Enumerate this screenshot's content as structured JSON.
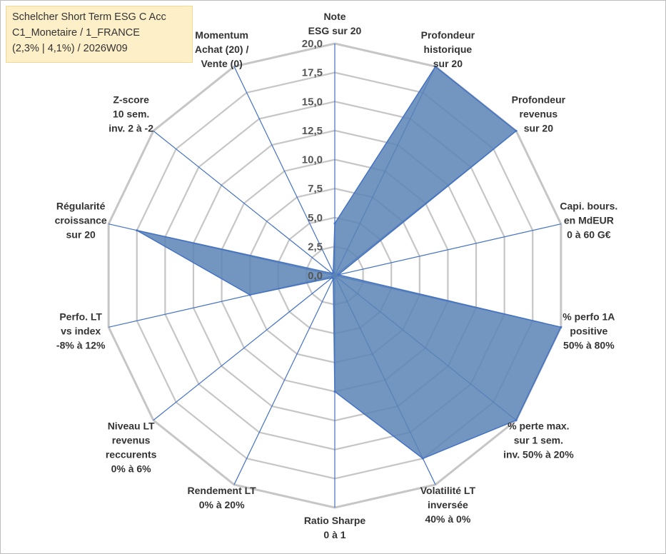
{
  "info_box": {
    "line1": "Schelcher Short Term ESG C Acc",
    "line2": "C1_Monetaire / 1_FRANCE",
    "line3": "(2,3% | 4,1%) / 2026W09"
  },
  "chart_data": {
    "type": "radar",
    "title": "",
    "rmin": 0,
    "rmax": 20,
    "tick_step": 2.5,
    "tick_labels": [
      "0,0",
      "2,5",
      "5,0",
      "7,5",
      "10,0",
      "12,5",
      "15,0",
      "17,5",
      "20,0"
    ],
    "axes": [
      {
        "label": [
          "Note",
          "ESG sur 20"
        ],
        "value": 4.5
      },
      {
        "label": [
          "Profondeur",
          "historique",
          "sur 20"
        ],
        "value": 20
      },
      {
        "label": [
          "Profondeur",
          "revenus",
          "sur 20"
        ],
        "value": 20
      },
      {
        "label": [
          "Capi. bours.",
          "en MdEUR",
          "0 à 60 G€"
        ],
        "value": 0.3
      },
      {
        "label": [
          "% perfo 1A",
          "positive",
          "50% à 80%"
        ],
        "value": 20
      },
      {
        "label": [
          "% perte max.",
          "sur 1 sem.",
          "inv. 50% à 20%"
        ],
        "value": 20
      },
      {
        "label": [
          "Volatilité LT",
          "inversée",
          "40% à 0%"
        ],
        "value": 17.5
      },
      {
        "label": [
          "Ratio Sharpe",
          "0 à 1"
        ],
        "value": 10
      },
      {
        "label": [
          "Rendement LT",
          "0% à 20%"
        ],
        "value": 0.3
      },
      {
        "label": [
          "Niveau LT",
          "revenus",
          "reccurents",
          "0% à 6%"
        ],
        "value": 0.3
      },
      {
        "label": [
          "Perfo. LT",
          "vs index",
          "-8% à 12%"
        ],
        "value": 7.5
      },
      {
        "label": [
          "Régularité",
          "croissance",
          "sur 20"
        ],
        "value": 17.5
      },
      {
        "label": [
          "Z-score",
          "10 sem.",
          "inv. 2 à -2"
        ],
        "value": 0.3
      },
      {
        "label": [
          "Momentum",
          "Achat (20) /",
          "Vente (0)"
        ],
        "value": 0.3
      }
    ],
    "colors": {
      "fill": "#5b84b5",
      "stroke": "#4472c4",
      "grid": "#c6c6c6",
      "spoke": "#4472c4"
    },
    "grid": true
  }
}
